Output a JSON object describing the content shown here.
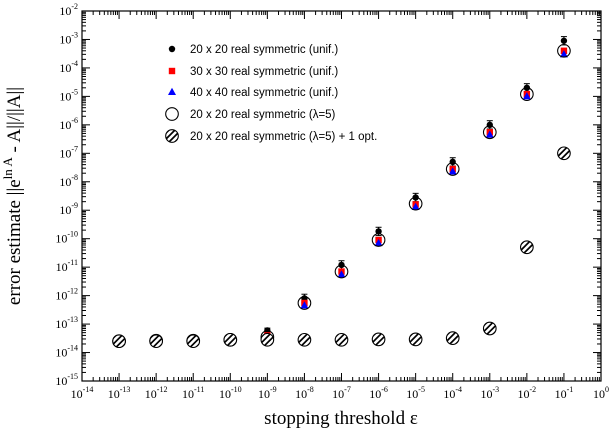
{
  "chart_data": {
    "type": "scatter",
    "title": "",
    "xlabel": "stopping threshold ε",
    "ylabel": "error estimate ||e^(ln A) - A||/||A||",
    "ylabel_parts": {
      "prefix": "error estimate ||e",
      "sup": "ln A",
      "suffix": " - A||/||A||"
    },
    "x_scale": "log",
    "y_scale": "log",
    "xlim": [
      1e-14,
      1
    ],
    "ylim": [
      1e-15,
      0.01
    ],
    "x_tick_exponents": [
      -14,
      -13,
      -12,
      -11,
      -10,
      -9,
      -8,
      -7,
      -6,
      -5,
      -4,
      -3,
      -2,
      -1,
      0
    ],
    "y_tick_exponents": [
      -15,
      -14,
      -13,
      -12,
      -11,
      -10,
      -9,
      -8,
      -7,
      -6,
      -5,
      -4,
      -3,
      -2
    ],
    "tick_base": "10",
    "grid": false,
    "legend_position": "top-left",
    "x": [
      1e-13,
      1e-12,
      1e-11,
      1e-10,
      1e-09,
      1e-08,
      1e-07,
      1e-06,
      1e-05,
      0.0001,
      0.001,
      0.01,
      0.1
    ],
    "series": [
      {
        "name": "20 x 20 real symmetric (unif.)",
        "marker": "circle-filled",
        "color": "#000000",
        "x": [
          1e-09,
          1e-08,
          1e-07,
          1e-06,
          1e-05,
          0.0001,
          0.001,
          0.01,
          0.1
        ],
        "y": [
          6e-14,
          8e-13,
          1.2e-11,
          1.8e-10,
          2.8e-09,
          5e-08,
          1e-06,
          2e-05,
          0.0009
        ],
        "error_y": [
          1.2,
          1.4,
          1.4,
          1.4,
          1.4,
          1.4,
          1.4,
          1.4,
          1.4
        ]
      },
      {
        "name": "30 x 30 real symmetric (unif.)",
        "marker": "square-filled",
        "color": "#ff0000",
        "x": [
          1e-09,
          1e-08,
          1e-07,
          1e-06,
          1e-05,
          0.0001,
          0.001,
          0.01,
          0.1
        ],
        "y": [
          4e-14,
          5.5e-13,
          7e-12,
          9e-11,
          1.6e-09,
          2.8e-08,
          5.5e-07,
          1.2e-05,
          0.0004
        ]
      },
      {
        "name": "40 x 40 real symmetric (unif.)",
        "marker": "triangle-filled",
        "color": "#0000ff",
        "x": [
          1e-09,
          1e-08,
          1e-07,
          1e-06,
          1e-05,
          0.0001,
          0.001,
          0.01,
          0.1
        ],
        "y": [
          3.5e-14,
          4.5e-13,
          5.5e-12,
          7e-11,
          1.3e-09,
          2.3e-08,
          4.5e-07,
          1e-05,
          0.0003
        ]
      },
      {
        "name": "20 x 20 real symmetric (λ=5)",
        "marker": "circle-open",
        "color": "#000000",
        "x": [
          1e-13,
          1e-12,
          1e-11,
          1e-10,
          1e-09,
          1e-08,
          1e-07,
          1e-06,
          1e-05,
          0.0001,
          0.001,
          0.01,
          0.1
        ],
        "y": [
          2.5e-14,
          2.6e-14,
          2.6e-14,
          2.8e-14,
          3.5e-14,
          5.5e-13,
          7e-12,
          9e-11,
          1.7e-09,
          2.8e-08,
          5.5e-07,
          1.2e-05,
          0.0004
        ]
      },
      {
        "name": "20 x 20 real symmetric (λ=5) + 1 opt.",
        "marker": "circle-hatched",
        "color": "#000000",
        "x": [
          1e-13,
          1e-12,
          1e-11,
          1e-10,
          1e-09,
          1e-08,
          1e-07,
          1e-06,
          1e-05,
          0.0001,
          0.001,
          0.01,
          0.1
        ],
        "y": [
          2.5e-14,
          2.5e-14,
          2.5e-14,
          2.8e-14,
          2.8e-14,
          2.8e-14,
          2.8e-14,
          2.9e-14,
          2.9e-14,
          3.2e-14,
          7e-14,
          5e-11,
          1e-07
        ]
      }
    ]
  }
}
